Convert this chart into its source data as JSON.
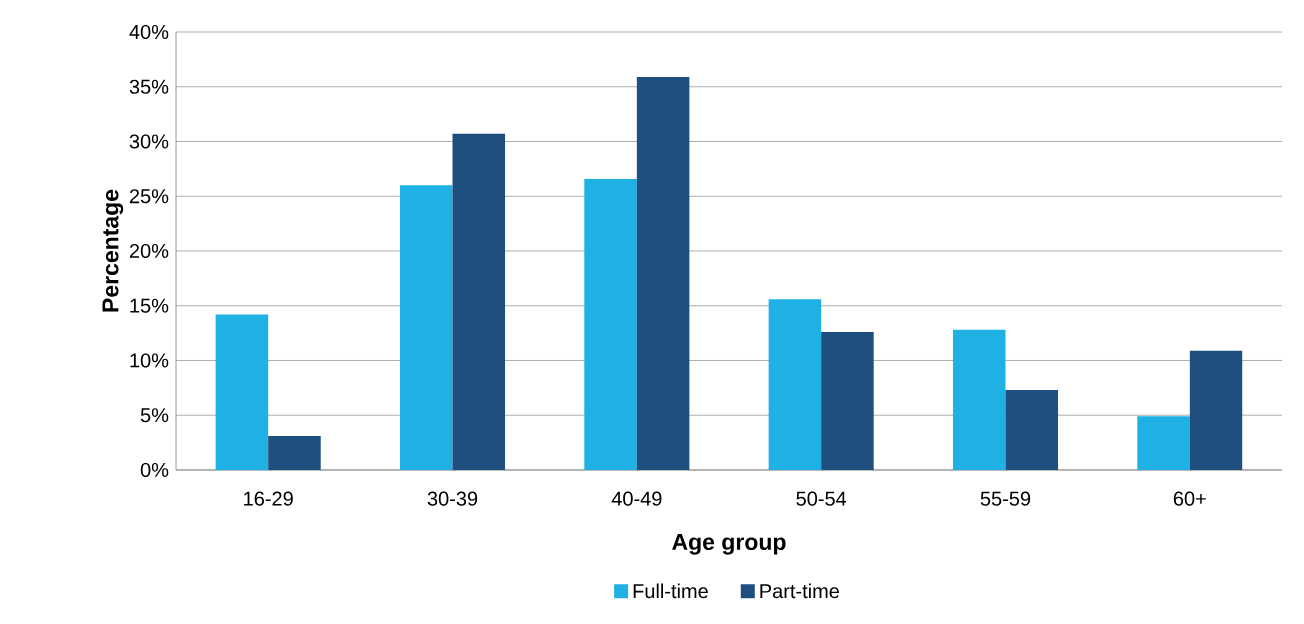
{
  "chart_data": {
    "type": "bar",
    "xlabel": "Age group",
    "ylabel": "Percentage",
    "categories": [
      "16-29",
      "30-39",
      "40-49",
      "50-54",
      "55-59",
      "60+"
    ],
    "series": [
      {
        "name": "Full-time",
        "color": "#1fb0e4",
        "values": [
          14.2,
          26.0,
          26.6,
          15.6,
          12.8,
          4.9
        ]
      },
      {
        "name": "Part-time",
        "color": "#1f4f7f",
        "values": [
          3.1,
          30.7,
          35.9,
          12.6,
          7.3,
          10.9
        ]
      }
    ],
    "ylim": [
      0,
      40
    ],
    "yticks": [
      {
        "value": 0,
        "label": "0%"
      },
      {
        "value": 5,
        "label": "5%"
      },
      {
        "value": 10,
        "label": "10%"
      },
      {
        "value": 15,
        "label": "15%"
      },
      {
        "value": 20,
        "label": "20%"
      },
      {
        "value": 25,
        "label": "25%"
      },
      {
        "value": 30,
        "label": "30%"
      },
      {
        "value": 35,
        "label": "35%"
      },
      {
        "value": 40,
        "label": "40%"
      }
    ],
    "grid": "y",
    "legend": "bottom"
  }
}
